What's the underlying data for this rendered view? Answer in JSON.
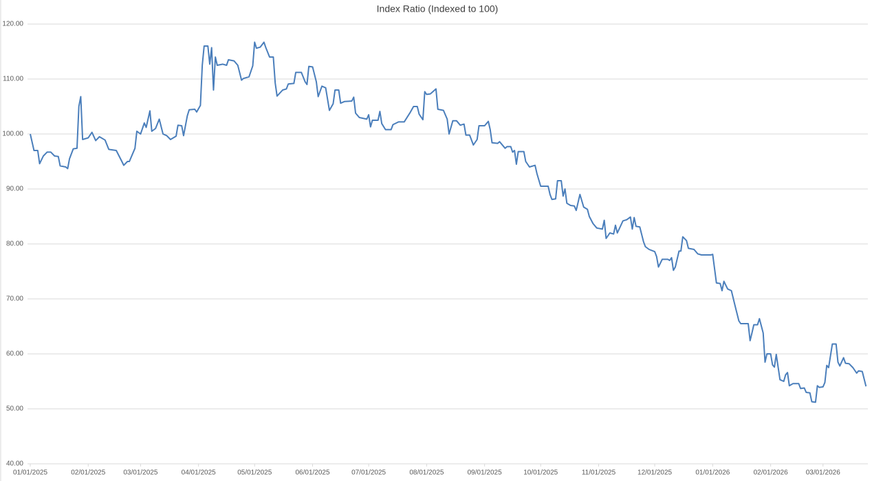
{
  "chart_data": {
    "type": "line",
    "title": "Index Ratio (Indexed to 100)",
    "x": [
      "01/01/2025",
      "01/03/2025",
      "01/05/2025",
      "01/06/2025",
      "01/08/2025",
      "01/10/2025",
      "01/12/2025",
      "01/14/2025",
      "01/16/2025",
      "01/17/2025",
      "01/20/2025",
      "01/21/2025",
      "01/22/2025",
      "01/24/2025",
      "01/26/2025",
      "01/27/2025",
      "01/28/2025",
      "01/29/2025",
      "02/01/2025",
      "02/03/2025",
      "02/05/2025",
      "02/07/2025",
      "02/10/2025",
      "02/12/2025",
      "02/16/2025",
      "02/19/2025",
      "02/20/2025",
      "02/22/2025",
      "02/23/2025",
      "02/26/2025",
      "02/27/2025",
      "03/01/2025",
      "03/03/2025",
      "03/04/2025",
      "03/06/2025",
      "03/07/2025",
      "03/09/2025",
      "03/11/2025",
      "03/13/2025",
      "03/15/2025",
      "03/17/2025",
      "03/20/2025",
      "03/21/2025",
      "03/23/2025",
      "03/24/2025",
      "03/26/2025",
      "03/27/2025",
      "03/30/2025",
      "03/31/2025",
      "04/02/2025",
      "04/03/2025",
      "04/04/2025",
      "04/06/2025",
      "04/07/2025",
      "04/08/2025",
      "04/09/2025",
      "04/10/2025",
      "04/11/2025",
      "04/14/2025",
      "04/16/2025",
      "04/17/2025",
      "04/20/2025",
      "04/22/2025",
      "04/24/2025",
      "04/25/2025",
      "04/28/2025",
      "04/30/2025",
      "05/01/2025",
      "05/02/2025",
      "05/04/2025",
      "05/06/2025",
      "05/07/2025",
      "05/09/2025",
      "05/11/2025",
      "05/12/2025",
      "05/13/2025",
      "05/16/2025",
      "05/18/2025",
      "05/19/2025",
      "05/22/2025",
      "05/23/2025",
      "05/26/2025",
      "05/28/2025",
      "05/29/2025",
      "05/30/2025",
      "06/01/2025",
      "06/03/2025",
      "06/04/2025",
      "06/06/2025",
      "06/08/2025",
      "06/10/2025",
      "06/12/2025",
      "06/13/2025",
      "06/15/2025",
      "06/16/2025",
      "06/18/2025",
      "06/22/2025",
      "06/23/2025",
      "06/24/2025",
      "06/26/2025",
      "06/30/2025",
      "07/01/2025",
      "07/02/2025",
      "07/03/2025",
      "07/06/2025",
      "07/07/2025",
      "07/08/2025",
      "07/10/2025",
      "07/13/2025",
      "07/14/2025",
      "07/17/2025",
      "07/20/2025",
      "07/23/2025",
      "07/25/2025",
      "07/27/2025",
      "07/28/2025",
      "07/30/2025",
      "07/31/2025",
      "08/01/2025",
      "08/03/2025",
      "08/06/2025",
      "08/07/2025",
      "08/10/2025",
      "08/12/2025",
      "08/13/2025",
      "08/15/2025",
      "08/17/2025",
      "08/19/2025",
      "08/21/2025",
      "08/22/2025",
      "08/24/2025",
      "08/26/2025",
      "08/28/2025",
      "08/29/2025",
      "09/01/2025",
      "09/03/2025",
      "09/04/2025",
      "09/05/2025",
      "09/08/2025",
      "09/09/2025",
      "09/12/2025",
      "09/13/2025",
      "09/15/2025",
      "09/16/2025",
      "09/17/2025",
      "09/18/2025",
      "09/19/2025",
      "09/22/2025",
      "09/23/2025",
      "09/25/2025",
      "09/28/2025",
      "09/29/2025",
      "10/01/2025",
      "10/05/2025",
      "10/06/2025",
      "10/07/2025",
      "10/09/2025",
      "10/10/2025",
      "10/12/2025",
      "10/13/2025",
      "10/14/2025",
      "10/15/2025",
      "10/17/2025",
      "10/19/2025",
      "10/20/2025",
      "10/22/2025",
      "10/24/2025",
      "10/26/2025",
      "10/27/2025",
      "10/29/2025",
      "10/31/2025",
      "11/03/2025",
      "11/04/2025",
      "11/05/2025",
      "11/07/2025",
      "11/09/2025",
      "11/10/2025",
      "11/11/2025",
      "11/14/2025",
      "11/16/2025",
      "11/18/2025",
      "11/19/2025",
      "11/20/2025",
      "11/21/2025",
      "11/23/2025",
      "11/25/2025",
      "11/26/2025",
      "11/28/2025",
      "12/01/2025",
      "12/02/2025",
      "12/03/2025",
      "12/05/2025",
      "12/08/2025",
      "12/09/2025",
      "12/10/2025",
      "12/11/2025",
      "12/12/2025",
      "12/14/2025",
      "12/15/2025",
      "12/16/2025",
      "12/18/2025",
      "12/19/2025",
      "12/22/2025",
      "12/24/2025",
      "12/26/2025",
      "12/31/2025",
      "01/01/2026",
      "01/03/2026",
      "01/05/2026",
      "01/06/2026",
      "01/07/2026",
      "01/09/2026",
      "01/11/2026",
      "01/13/2026",
      "01/15/2026",
      "01/16/2026",
      "01/20/2026",
      "01/21/2026",
      "01/22/2026",
      "01/23/2026",
      "01/25/2026",
      "01/26/2026",
      "01/28/2026",
      "01/29/2026",
      "01/30/2026",
      "02/01/2026",
      "02/02/2026",
      "02/03/2026",
      "02/04/2026",
      "02/06/2026",
      "02/08/2026",
      "02/09/2026",
      "02/10/2026",
      "02/11/2026",
      "02/13/2026",
      "02/16/2026",
      "02/17/2026",
      "02/19/2026",
      "02/20/2026",
      "02/22/2026",
      "02/23/2026",
      "02/25/2026",
      "02/26/2026",
      "02/27/2026",
      "03/01/2026",
      "03/02/2026",
      "03/03/2026",
      "03/04/2026",
      "03/06/2026",
      "03/08/2026",
      "03/09/2026",
      "03/10/2026",
      "03/12/2026",
      "03/13/2026",
      "03/15/2026",
      "03/17/2026",
      "03/19/2026",
      "03/20/2026",
      "03/22/2026",
      "03/24/2026"
    ],
    "series": [
      {
        "name": "Index Ratio",
        "color": "#4a7ebb",
        "values": [
          100,
          97,
          97,
          94.6,
          96,
          96.7,
          96.7,
          96,
          95.9,
          94.2,
          94,
          93.7,
          95.5,
          97.3,
          97.4,
          105,
          106.8,
          99,
          99.3,
          100.3,
          98.8,
          99.5,
          98.9,
          97.2,
          97,
          95,
          94.3,
          95,
          95,
          97.4,
          100.5,
          100,
          102,
          101.2,
          104.2,
          100.5,
          101,
          102.7,
          100,
          99.7,
          99,
          99.6,
          101.6,
          101.5,
          99.7,
          103.3,
          104.4,
          104.5,
          104,
          105.2,
          112.5,
          116,
          116,
          112.7,
          115.7,
          108,
          114,
          112.5,
          112.7,
          112.5,
          113.5,
          113.3,
          112.5,
          109.8,
          110.1,
          110.4,
          112.4,
          116.7,
          115.6,
          115.8,
          116.7,
          115.7,
          114,
          114,
          109.3,
          106.9,
          108,
          108.2,
          109.1,
          109.2,
          111.2,
          111.2,
          109.5,
          109,
          112.3,
          112.2,
          109.5,
          106.8,
          108.7,
          108.4,
          104.3,
          105.5,
          108,
          108,
          105.6,
          105.9,
          106,
          106.7,
          103.8,
          103,
          102.7,
          103.5,
          101.3,
          102.5,
          102.5,
          104.1,
          101.9,
          100.8,
          100.8,
          101.7,
          102.2,
          102.2,
          103.8,
          105,
          105,
          103.6,
          102.6,
          107.7,
          107.2,
          107.3,
          108.2,
          104.5,
          104.3,
          102.7,
          100,
          102.4,
          102.4,
          101.6,
          101.8,
          99.8,
          99.8,
          98,
          99,
          101.5,
          101.5,
          102.3,
          100.8,
          98.4,
          98.3,
          98.6,
          97.4,
          97.7,
          97.7,
          96.7,
          97,
          94.5,
          96.8,
          96.8,
          95,
          94,
          94.3,
          92.8,
          90.5,
          90.5,
          89,
          88.1,
          88.2,
          91.5,
          91.5,
          88.7,
          90,
          87.4,
          87,
          86.9,
          86.1,
          89,
          86.7,
          86.3,
          85,
          83.7,
          82.9,
          82.7,
          84.3,
          81,
          82,
          81.8,
          83.4,
          82,
          84.2,
          84.4,
          84.9,
          82.7,
          84.8,
          83.2,
          83.1,
          80.4,
          79.5,
          79,
          78.6,
          77.7,
          75.8,
          77.2,
          77.2,
          77,
          77.5,
          75.2,
          75.8,
          78.7,
          78.7,
          81.3,
          80.6,
          79.2,
          79,
          78.2,
          78,
          78,
          78.1,
          72.9,
          72.8,
          71.5,
          73.2,
          71.8,
          71.5,
          68.7,
          66,
          65.5,
          65.5,
          62.4,
          63.8,
          65.3,
          65.3,
          66.4,
          63.8,
          58.5,
          60,
          60,
          58,
          57.6,
          59.9,
          55.3,
          55,
          56.2,
          56.6,
          54.2,
          54.6,
          54.6,
          53.7,
          53.8,
          53,
          52.9,
          51.3,
          51.2,
          54.2,
          53.9,
          54,
          54.8,
          57.9,
          57.5,
          61.8,
          61.8,
          58.5,
          57.8,
          59.3,
          58.3,
          58.2,
          57.5,
          56.5,
          56.9,
          56.8,
          54.1
        ]
      }
    ],
    "xlim": [
      "01/01/2025",
      "03/25/2026"
    ],
    "xticks": [
      "01/01/2025",
      "02/01/2025",
      "03/01/2025",
      "04/01/2025",
      "05/01/2025",
      "06/01/2025",
      "07/01/2025",
      "08/01/2025",
      "09/01/2025",
      "10/01/2025",
      "11/01/2025",
      "12/01/2025",
      "01/01/2026",
      "02/01/2026",
      "03/01/2026"
    ],
    "ylim": [
      40,
      120
    ],
    "yticks": [
      {
        "value": 40,
        "label": "40.00"
      },
      {
        "value": 50,
        "label": "50.00"
      },
      {
        "value": 60,
        "label": "60.00"
      },
      {
        "value": 70,
        "label": "70.00"
      },
      {
        "value": 80,
        "label": "80.00"
      },
      {
        "value": 90,
        "label": "90.00"
      },
      {
        "value": 100,
        "label": "100.00"
      },
      {
        "value": 110,
        "label": "110.00"
      },
      {
        "value": 120,
        "label": "120.00"
      }
    ],
    "grid": true
  }
}
